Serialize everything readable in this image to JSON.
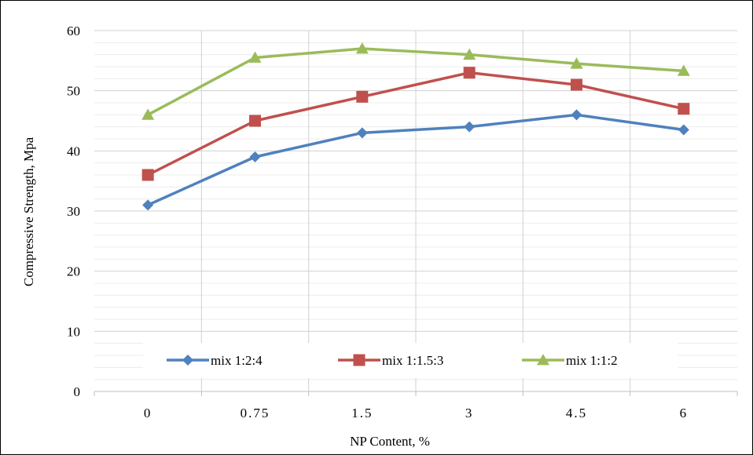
{
  "chart_data": {
    "type": "line",
    "title": "",
    "xlabel": "NP Content, %",
    "ylabel": "Compressive Strength, Mpa",
    "categories": [
      "0",
      "0.75",
      "1.5",
      "3",
      "4.5",
      "6"
    ],
    "ylim": [
      0,
      60
    ],
    "yticks": [
      "0",
      "10",
      "20",
      "30",
      "40",
      "50",
      "60"
    ],
    "grid": true,
    "legend_position": "bottom-inside",
    "series": [
      {
        "name": "mix 1:2:4",
        "values": [
          31,
          39,
          43,
          44,
          46,
          43.5
        ],
        "color": "#4f81bd",
        "marker": "diamond"
      },
      {
        "name": "mix 1:1.5:3",
        "values": [
          36,
          45,
          49,
          53,
          51,
          47
        ],
        "color": "#c0504d",
        "marker": "square"
      },
      {
        "name": "mix 1:1:2",
        "values": [
          46,
          55.5,
          57,
          56,
          54.5,
          53.3
        ],
        "color": "#9bbb59",
        "marker": "triangle"
      }
    ]
  }
}
